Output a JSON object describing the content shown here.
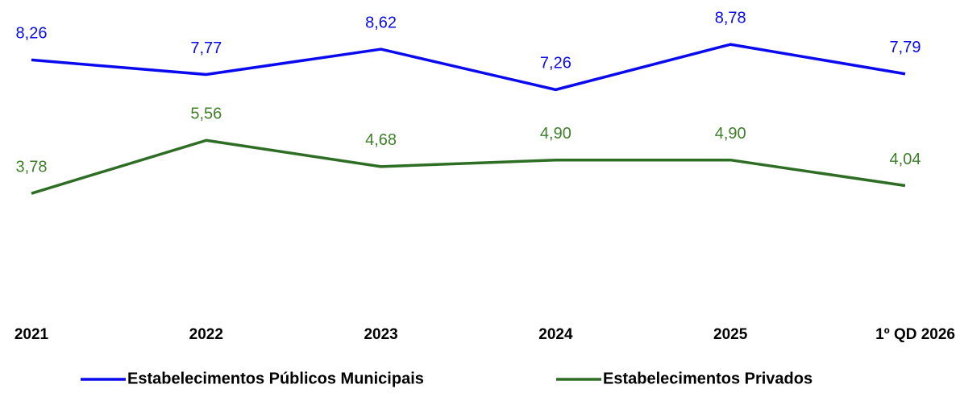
{
  "chart_data": {
    "type": "line",
    "categories": [
      "2021",
      "2022",
      "2023",
      "2024",
      "2025",
      "1º QD 2026"
    ],
    "series": [
      {
        "name": "Estabelecimentos Públicos Municipais",
        "color": "#0a0aee",
        "values": [
          8.26,
          7.77,
          8.62,
          7.26,
          8.78,
          7.79
        ],
        "value_labels": [
          "8,26",
          "7,77",
          "8,62",
          "7,26",
          "8,78",
          "7,79"
        ]
      },
      {
        "name": "Estabelecimentos Privados",
        "color": "#2d6e24",
        "values": [
          3.78,
          5.56,
          4.68,
          4.9,
          4.9,
          4.04
        ],
        "value_labels": [
          "3,78",
          "5,56",
          "4,68",
          "4,90",
          "4,90",
          "4,04"
        ]
      }
    ],
    "ylim": [
      0,
      10
    ]
  }
}
